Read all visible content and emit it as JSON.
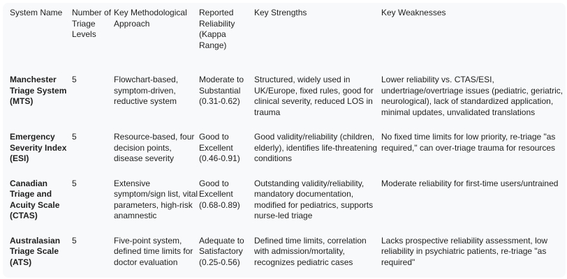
{
  "table": {
    "headers": [
      "System Name",
      "Number of Triage Levels",
      "Key Methodological Approach",
      "Reported Reliability (Kappa Range)",
      "Key Strengths",
      "Key Weaknesses"
    ],
    "rows": [
      {
        "system": "Manchester Triage System (MTS)",
        "levels": "5",
        "approach": "Flowchart-based, symptom-driven, reductive system",
        "reliability": "Moderate to Substantial (0.31-0.62)",
        "strengths": "Structured, widely used in UK/Europe, fixed rules, good for clinical severity, reduced LOS in trauma",
        "weaknesses": "Lower reliability vs. CTAS/ESI, undertriage/overtriage issues (pediatric, geriatric, neurological), lack of standardized application, minimal updates, unvalidated translations"
      },
      {
        "system": "Emergency Severity Index (ESI)",
        "levels": "5",
        "approach": "Resource-based, four decision points, disease severity",
        "reliability": "Good to Excellent (0.46-0.91)",
        "strengths": "Good validity/reliability (children, elderly), identifies life-threatening conditions",
        "weaknesses": "No fixed time limits for low priority, re-triage \"as required,\" can over-triage trauma for resources"
      },
      {
        "system": "Canadian Triage and Acuity Scale (CTAS)",
        "levels": "5",
        "approach": "Extensive symptom/sign list, vital parameters, high-risk anamnestic",
        "reliability": "Good to Excellent (0.68-0.89)",
        "strengths": "Outstanding validity/reliability, mandatory documentation, modified for pediatrics, supports nurse-led triage",
        "weaknesses": "Moderate reliability for first-time users/untrained"
      },
      {
        "system": "Australasian Triage Scale (ATS)",
        "levels": "5",
        "approach": "Five-point system, defined time limits for doctor evaluation",
        "reliability": "Adequate to Satisfactory (0.25-0.56)",
        "strengths": "Defined time limits, correlation with admission/mortality, recognizes pediatric cases",
        "weaknesses": "Lacks prospective reliability assessment, low reliability in psychiatric patients, re-triage \"as required\""
      }
    ]
  }
}
